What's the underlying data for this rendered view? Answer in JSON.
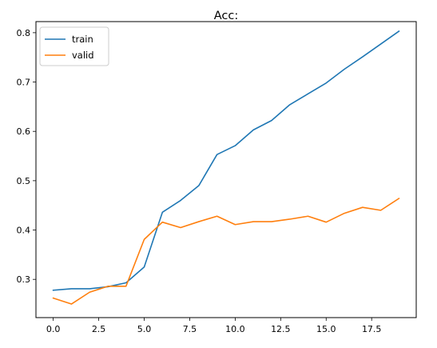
{
  "chart_data": {
    "type": "line",
    "title": "Acc:",
    "xlabel": "",
    "ylabel": "",
    "xlim": [
      -0.95,
      19.95
    ],
    "ylim": [
      0.2225,
      0.8225
    ],
    "xticks": [
      0,
      2.5,
      5,
      7.5,
      10,
      12.5,
      15,
      17.5
    ],
    "xtick_labels": [
      "0.0",
      "2.5",
      "5.0",
      "7.5",
      "10.0",
      "12.5",
      "15.0",
      "17.5"
    ],
    "yticks": [
      0.3,
      0.4,
      0.5,
      0.6,
      0.7,
      0.8
    ],
    "ytick_labels": [
      "0.3",
      "0.4",
      "0.5",
      "0.6",
      "0.7",
      "0.8"
    ],
    "grid": false,
    "legend": "top-left",
    "x": [
      0,
      1,
      2,
      3,
      4,
      5,
      6,
      7,
      8,
      9,
      10,
      11,
      12,
      13,
      14,
      15,
      16,
      17,
      18,
      19
    ],
    "series": [
      {
        "name": "train",
        "color": "#1f77b4",
        "values": [
          0.278,
          0.281,
          0.281,
          0.285,
          0.293,
          0.325,
          0.436,
          0.46,
          0.49,
          0.553,
          0.571,
          0.603,
          0.622,
          0.654,
          0.676,
          0.698,
          0.726,
          0.751,
          0.777,
          0.803
        ]
      },
      {
        "name": "valid",
        "color": "#ff7f0e",
        "values": [
          0.262,
          0.25,
          0.274,
          0.286,
          0.286,
          0.381,
          0.416,
          0.405,
          0.417,
          0.428,
          0.411,
          0.417,
          0.417,
          0.422,
          0.428,
          0.416,
          0.434,
          0.446,
          0.44,
          0.464
        ]
      }
    ]
  }
}
